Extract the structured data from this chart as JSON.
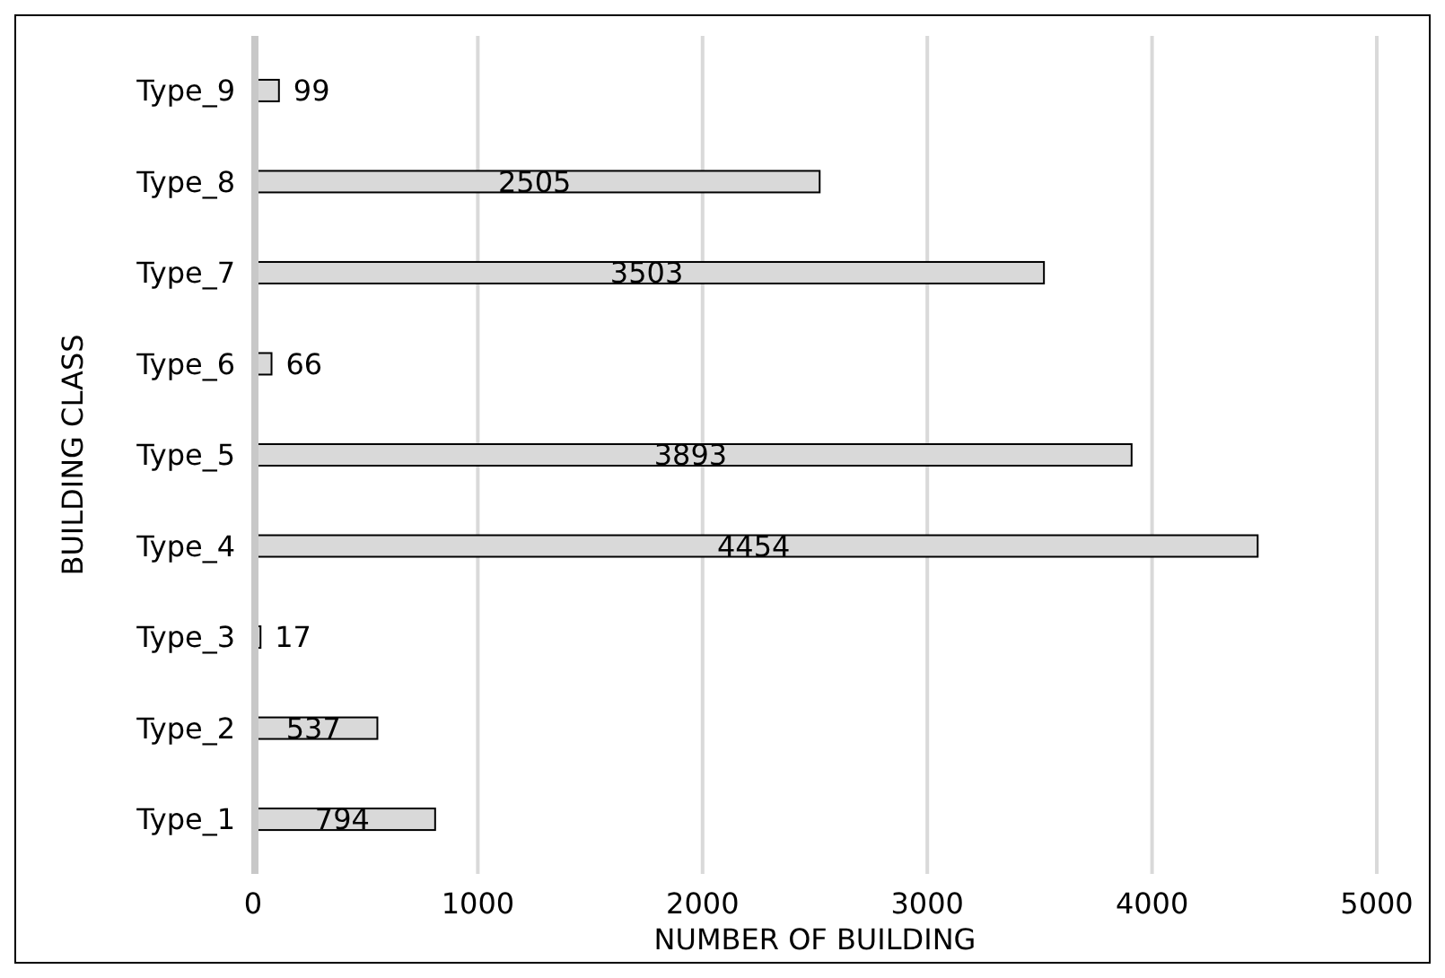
{
  "chart_data": {
    "type": "bar",
    "orientation": "horizontal",
    "xlabel": "NUMBER OF BUILDING",
    "ylabel": "BUILDING CLASS",
    "categories": [
      "Type_9",
      "Type_8",
      "Type_7",
      "Type_6",
      "Type_5",
      "Type_4",
      "Type_3",
      "Type_2",
      "Type_1"
    ],
    "values": [
      99,
      2505,
      3503,
      66,
      3893,
      4454,
      17,
      537,
      794
    ],
    "color": "#d9d9d9",
    "xlim": [
      0,
      5000
    ],
    "xticks": [
      0,
      1000,
      2000,
      3000,
      4000,
      5000
    ],
    "grid": "x",
    "data_labels": true
  }
}
